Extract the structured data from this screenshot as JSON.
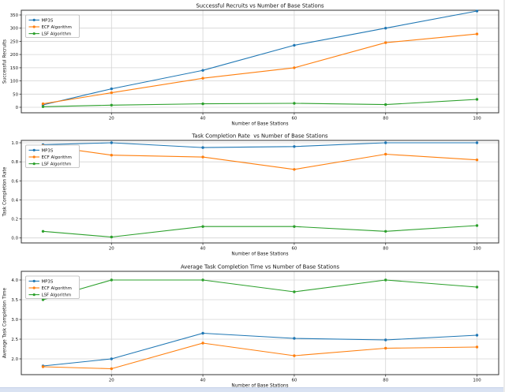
{
  "window": {
    "background": "#ffffff",
    "bottom_strip_color": "#d9e2f2",
    "right_edge_color": "#ececec"
  },
  "palette": {
    "mp3s": "#1f77b4",
    "ecf": "#ff7f0e",
    "lsf": "#2ca02c",
    "grid": "#d4d4d4",
    "spine": "#333333",
    "legend_border": "#b8b8b8",
    "text": "#111111"
  },
  "legend": {
    "position": "upper left",
    "entries": [
      "MP3S",
      "ECF Algorithm",
      "LSF Algorithm"
    ]
  },
  "chart_data": [
    {
      "type": "line",
      "title": "Successful Recruits vs Number of Base Stations",
      "xlabel": "Number of Base Stations",
      "ylabel": "Successful Recruits",
      "x": [
        5,
        20,
        40,
        60,
        80,
        100
      ],
      "xticks": [
        20,
        40,
        60,
        80,
        100
      ],
      "xticklabels": [
        "20",
        "40",
        "60",
        "80",
        "100"
      ],
      "yticks": [
        0,
        50,
        100,
        150,
        200,
        250,
        300,
        350
      ],
      "yticklabels": [
        "0",
        "50",
        "100",
        "150",
        "200",
        "250",
        "300",
        "350"
      ],
      "xlim": [
        0.25,
        104.75
      ],
      "ylim": [
        -21,
        368
      ],
      "grid": true,
      "legend_position": "upper left",
      "series": [
        {
          "name": "MP3S",
          "color": "#1f77b4",
          "values": [
            9,
            70,
            140,
            235,
            300,
            365
          ]
        },
        {
          "name": "ECF Algorithm",
          "color": "#ff7f0e",
          "values": [
            13,
            55,
            110,
            150,
            245,
            278
          ]
        },
        {
          "name": "LSF Algorithm",
          "color": "#2ca02c",
          "values": [
            2,
            8,
            13,
            15,
            10,
            30
          ]
        }
      ]
    },
    {
      "type": "line",
      "title": "Task Completion Rate  vs Number of Base Stations",
      "xlabel": "Number of Base Stations",
      "ylabel": "Task Completion Rate",
      "x": [
        5,
        20,
        40,
        60,
        80,
        100
      ],
      "xticks": [
        20,
        40,
        60,
        80,
        100
      ],
      "xticklabels": [
        "20",
        "40",
        "60",
        "80",
        "100"
      ],
      "yticks": [
        0.0,
        0.2,
        0.4,
        0.6,
        0.8,
        1.0
      ],
      "yticklabels": [
        "0.0",
        "0.2",
        "0.4",
        "0.6",
        "0.8",
        "1.0"
      ],
      "xlim": [
        0.25,
        104.75
      ],
      "ylim": [
        -0.052,
        1.025
      ],
      "grid": true,
      "legend_position": "upper left",
      "series": [
        {
          "name": "MP3S",
          "color": "#1f77b4",
          "values": [
            0.98,
            1.0,
            0.95,
            0.96,
            1.0,
            1.0
          ]
        },
        {
          "name": "ECF Algorithm",
          "color": "#ff7f0e",
          "values": [
            0.97,
            0.87,
            0.85,
            0.72,
            0.88,
            0.82
          ]
        },
        {
          "name": "LSF Algorithm",
          "color": "#2ca02c",
          "values": [
            0.07,
            0.01,
            0.12,
            0.12,
            0.07,
            0.13
          ]
        }
      ]
    },
    {
      "type": "line",
      "title": "Average Task Completion Time vs Number of Base Stations",
      "xlabel": "Number of Base Stations",
      "ylabel": "Average Task Completion Time",
      "x": [
        5,
        20,
        40,
        60,
        80,
        100
      ],
      "xticks": [
        20,
        40,
        60,
        80,
        100
      ],
      "xticklabels": [
        "20",
        "40",
        "60",
        "80",
        "100"
      ],
      "yticks": [
        2.0,
        2.5,
        3.0,
        3.5,
        4.0
      ],
      "yticklabels": [
        "2.0",
        "2.5",
        "3.0",
        "3.5",
        "4.0"
      ],
      "xlim": [
        0.25,
        104.75
      ],
      "ylim": [
        1.6,
        4.22
      ],
      "grid": true,
      "legend_position": "upper left",
      "series": [
        {
          "name": "MP3S",
          "color": "#1f77b4",
          "values": [
            1.82,
            2.0,
            2.65,
            2.52,
            2.48,
            2.6
          ]
        },
        {
          "name": "ECF Algorithm",
          "color": "#ff7f0e",
          "values": [
            1.8,
            1.75,
            2.4,
            2.08,
            2.27,
            2.3
          ]
        },
        {
          "name": "LSF Algorithm",
          "color": "#2ca02c",
          "values": [
            3.5,
            4.0,
            4.0,
            3.7,
            4.0,
            3.82
          ]
        }
      ]
    }
  ]
}
